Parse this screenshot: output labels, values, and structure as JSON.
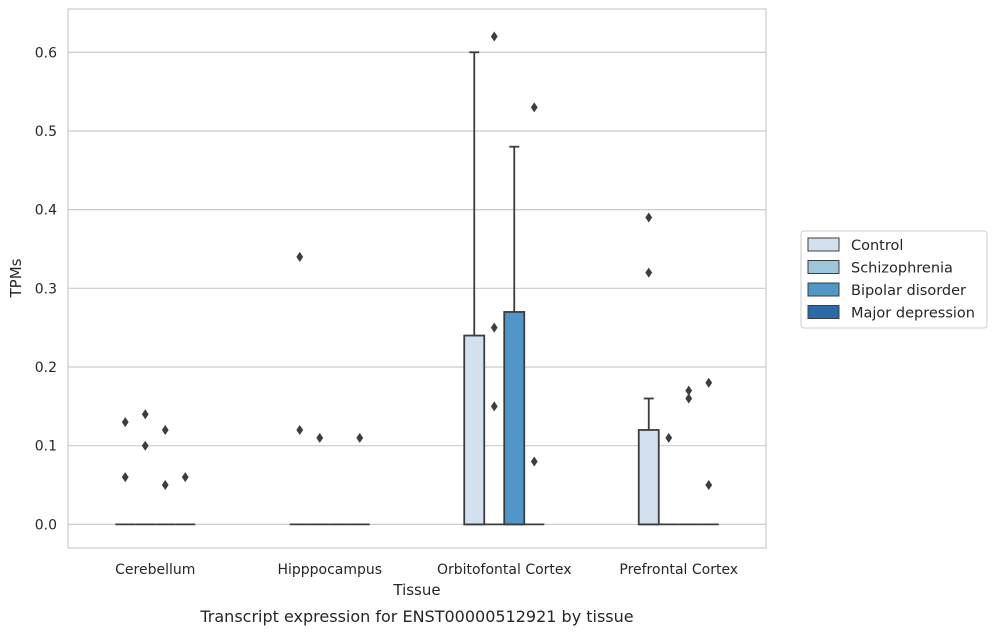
{
  "chart_data": {
    "type": "box",
    "xlabel": "Tissue",
    "ylabel": "TPMs",
    "caption": "Transcript expression for ENST00000512921 by tissue",
    "ylim": [
      -0.03,
      0.655
    ],
    "yticks": [
      "0.0",
      "0.1",
      "0.2",
      "0.3",
      "0.4",
      "0.5",
      "0.6"
    ],
    "ytick_values": [
      0,
      0.1,
      0.2,
      0.3,
      0.4,
      0.5,
      0.6
    ],
    "grid": "horizontal",
    "legend_placement": "right-center",
    "categories": [
      "Cerebellum",
      "Hipppocampus",
      "Orbitofontal Cortex",
      "Prefrontal Cortex"
    ],
    "series": [
      {
        "name": "Control",
        "color": "#d2e0ef",
        "boxes": [
          {
            "q1": 0,
            "median": 0,
            "q3": 0,
            "whisker_low": 0,
            "whisker_high": 0,
            "outliers": [
              0.06,
              0.13
            ]
          },
          {
            "q1": 0,
            "median": 0,
            "q3": 0,
            "whisker_low": 0,
            "whisker_high": 0,
            "outliers": [
              0.12,
              0.34
            ]
          },
          {
            "q1": 0,
            "median": 0,
            "q3": 0.24,
            "whisker_low": 0,
            "whisker_high": 0.6,
            "outliers": []
          },
          {
            "q1": 0,
            "median": 0,
            "q3": 0.12,
            "whisker_low": 0,
            "whisker_high": 0.16,
            "outliers": [
              0.32,
              0.39
            ]
          }
        ]
      },
      {
        "name": "Schizophrenia",
        "color": "#9ec5dc",
        "boxes": [
          {
            "q1": 0,
            "median": 0,
            "q3": 0,
            "whisker_low": 0,
            "whisker_high": 0,
            "outliers": [
              0.1,
              0.14
            ]
          },
          {
            "q1": 0,
            "median": 0,
            "q3": 0,
            "whisker_low": 0,
            "whisker_high": 0,
            "outliers": [
              0.11
            ]
          },
          {
            "q1": 0,
            "median": 0,
            "q3": 0,
            "whisker_low": 0,
            "whisker_high": 0,
            "outliers": [
              0.15,
              0.25,
              0.62
            ]
          },
          {
            "q1": 0,
            "median": 0,
            "q3": 0,
            "whisker_low": 0,
            "whisker_high": 0,
            "outliers": [
              0.11
            ]
          }
        ]
      },
      {
        "name": "Bipolar disorder",
        "color": "#5096c6",
        "boxes": [
          {
            "q1": 0,
            "median": 0,
            "q3": 0,
            "whisker_low": 0,
            "whisker_high": 0,
            "outliers": [
              0.05,
              0.12
            ]
          },
          {
            "q1": 0,
            "median": 0,
            "q3": 0,
            "whisker_low": 0,
            "whisker_high": 0,
            "outliers": []
          },
          {
            "q1": 0,
            "median": 0,
            "q3": 0.27,
            "whisker_low": 0,
            "whisker_high": 0.48,
            "outliers": []
          },
          {
            "q1": 0,
            "median": 0,
            "q3": 0,
            "whisker_low": 0,
            "whisker_high": 0,
            "outliers": [
              0.16,
              0.17
            ]
          }
        ]
      },
      {
        "name": "Major depression",
        "color": "#2c6ba8",
        "boxes": [
          {
            "q1": 0,
            "median": 0,
            "q3": 0,
            "whisker_low": 0,
            "whisker_high": 0,
            "outliers": [
              0.06
            ]
          },
          {
            "q1": 0,
            "median": 0,
            "q3": 0,
            "whisker_low": 0,
            "whisker_high": 0,
            "outliers": [
              0.11
            ]
          },
          {
            "q1": 0,
            "median": 0,
            "q3": 0,
            "whisker_low": 0,
            "whisker_high": 0,
            "outliers": [
              0.08,
              0.53
            ]
          },
          {
            "q1": 0,
            "median": 0,
            "q3": 0,
            "whisker_low": 0,
            "whisker_high": 0,
            "outliers": [
              0.05,
              0.18
            ]
          }
        ]
      }
    ]
  }
}
